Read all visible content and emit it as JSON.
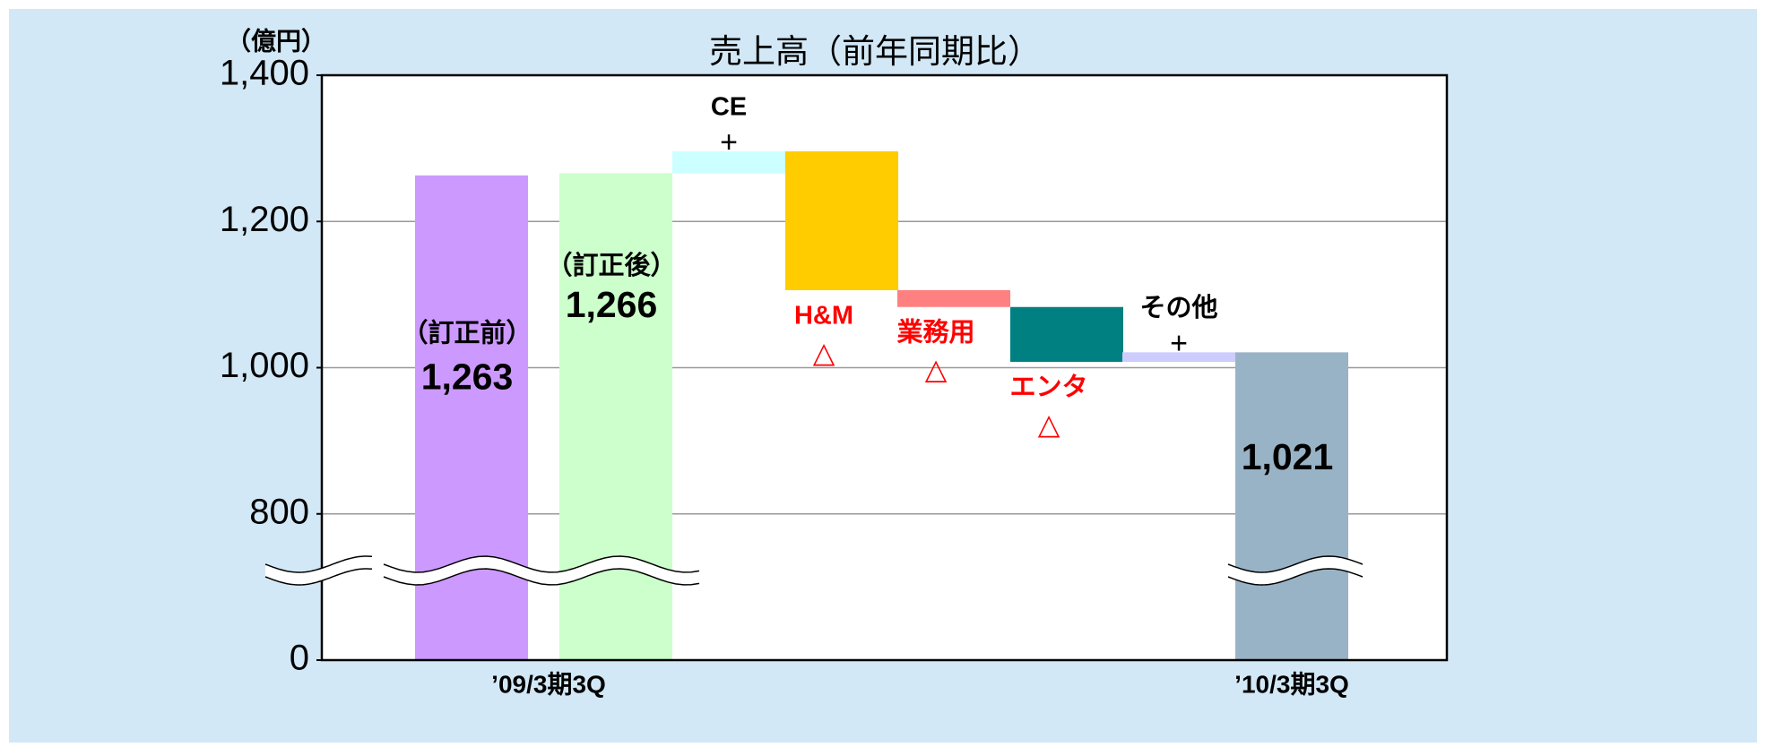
{
  "chart_data": {
    "type": "waterfall",
    "title": "売上高（前年同期比）",
    "y_unit_label": "（億円）",
    "categories": [
      "（訂正前）",
      "（訂正後）",
      "CE",
      "H&M",
      "業務用",
      "エンタ",
      "その他",
      null
    ],
    "signs": [
      null,
      null,
      "+",
      "△",
      "△",
      "△",
      "+",
      null
    ],
    "measures": [
      "absolute",
      "absolute",
      "relative",
      "relative",
      "relative",
      "relative",
      "relative",
      "absolute"
    ],
    "values": [
      1263,
      1266,
      30,
      -190,
      -23,
      -75,
      13,
      1021
    ],
    "value_labels": [
      "1,263",
      "1,266",
      null,
      null,
      null,
      null,
      null,
      "1,021"
    ],
    "colors": [
      "#cc99ff",
      "#ccffcc",
      "#ccffff",
      "#ffcc00",
      "#ff8080",
      "#008080",
      "#ccccff",
      "#99b3c6"
    ],
    "label_colors": [
      "#000000",
      "#000000",
      "#000000",
      "#ff0000",
      "#ff0000",
      "#ff0000",
      "#000000",
      "#000000"
    ],
    "period_labels": [
      "’09/3期3Q",
      "’10/3期3Q"
    ],
    "ylim": [
      0,
      1400
    ],
    "yticks": [
      0,
      800,
      {
        "value": 1000,
        "label": "1,000"
      },
      {
        "value": 1200,
        "label": "1,200"
      },
      {
        "value": 1400,
        "label": "1,400"
      }
    ],
    "grid": true
  }
}
